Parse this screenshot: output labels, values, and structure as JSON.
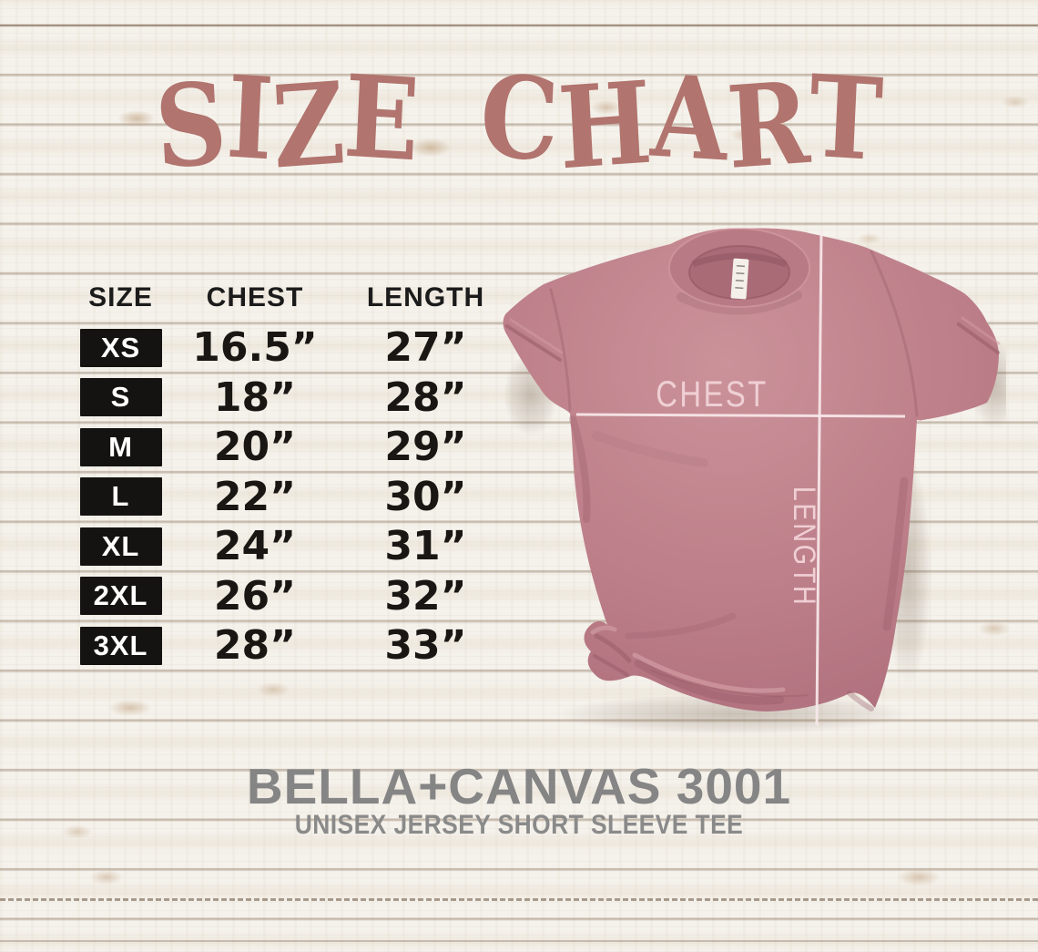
{
  "title": "SIZE CHART",
  "table": {
    "headers": [
      "SIZE",
      "CHEST",
      "LENGTH"
    ],
    "rows": [
      {
        "size": "XS",
        "chest": "16.5”",
        "length": "27”"
      },
      {
        "size": "S",
        "chest": "18”",
        "length": "28”"
      },
      {
        "size": "M",
        "chest": "20”",
        "length": "29”"
      },
      {
        "size": "L",
        "chest": "22”",
        "length": "30”"
      },
      {
        "size": "XL",
        "chest": "24”",
        "length": "31”"
      },
      {
        "size": "2XL",
        "chest": "26”",
        "length": "32”"
      },
      {
        "size": "3XL",
        "chest": "28”",
        "length": "33”"
      }
    ]
  },
  "shirt": {
    "chest_label": "CHEST",
    "length_label": "LENGTH"
  },
  "footer": {
    "product_name": "BELLA+CANVAS 3001",
    "product_subtitle": "UNISEX JERSEY SHORT SLEEVE TEE"
  },
  "colors": {
    "title_text": "#b1746e",
    "table_text": "#1b1b1b",
    "size_badge_bg": "#151312",
    "size_badge_text": "#ffffff",
    "shirt_base": "#bd7f89",
    "measure_line": "#f9e9eb",
    "measure_label": "#f0d2d6",
    "footer_text": "#858585",
    "wood_background": "#f5f2ec"
  },
  "chart_data": {
    "type": "table",
    "title": "SIZE CHART",
    "columns": [
      "SIZE",
      "CHEST",
      "LENGTH"
    ],
    "units": "inches",
    "rows": [
      [
        "XS",
        16.5,
        27
      ],
      [
        "S",
        18,
        28
      ],
      [
        "M",
        20,
        29
      ],
      [
        "L",
        22,
        30
      ],
      [
        "XL",
        24,
        31
      ],
      [
        "2XL",
        26,
        32
      ],
      [
        "3XL",
        28,
        33
      ]
    ]
  }
}
